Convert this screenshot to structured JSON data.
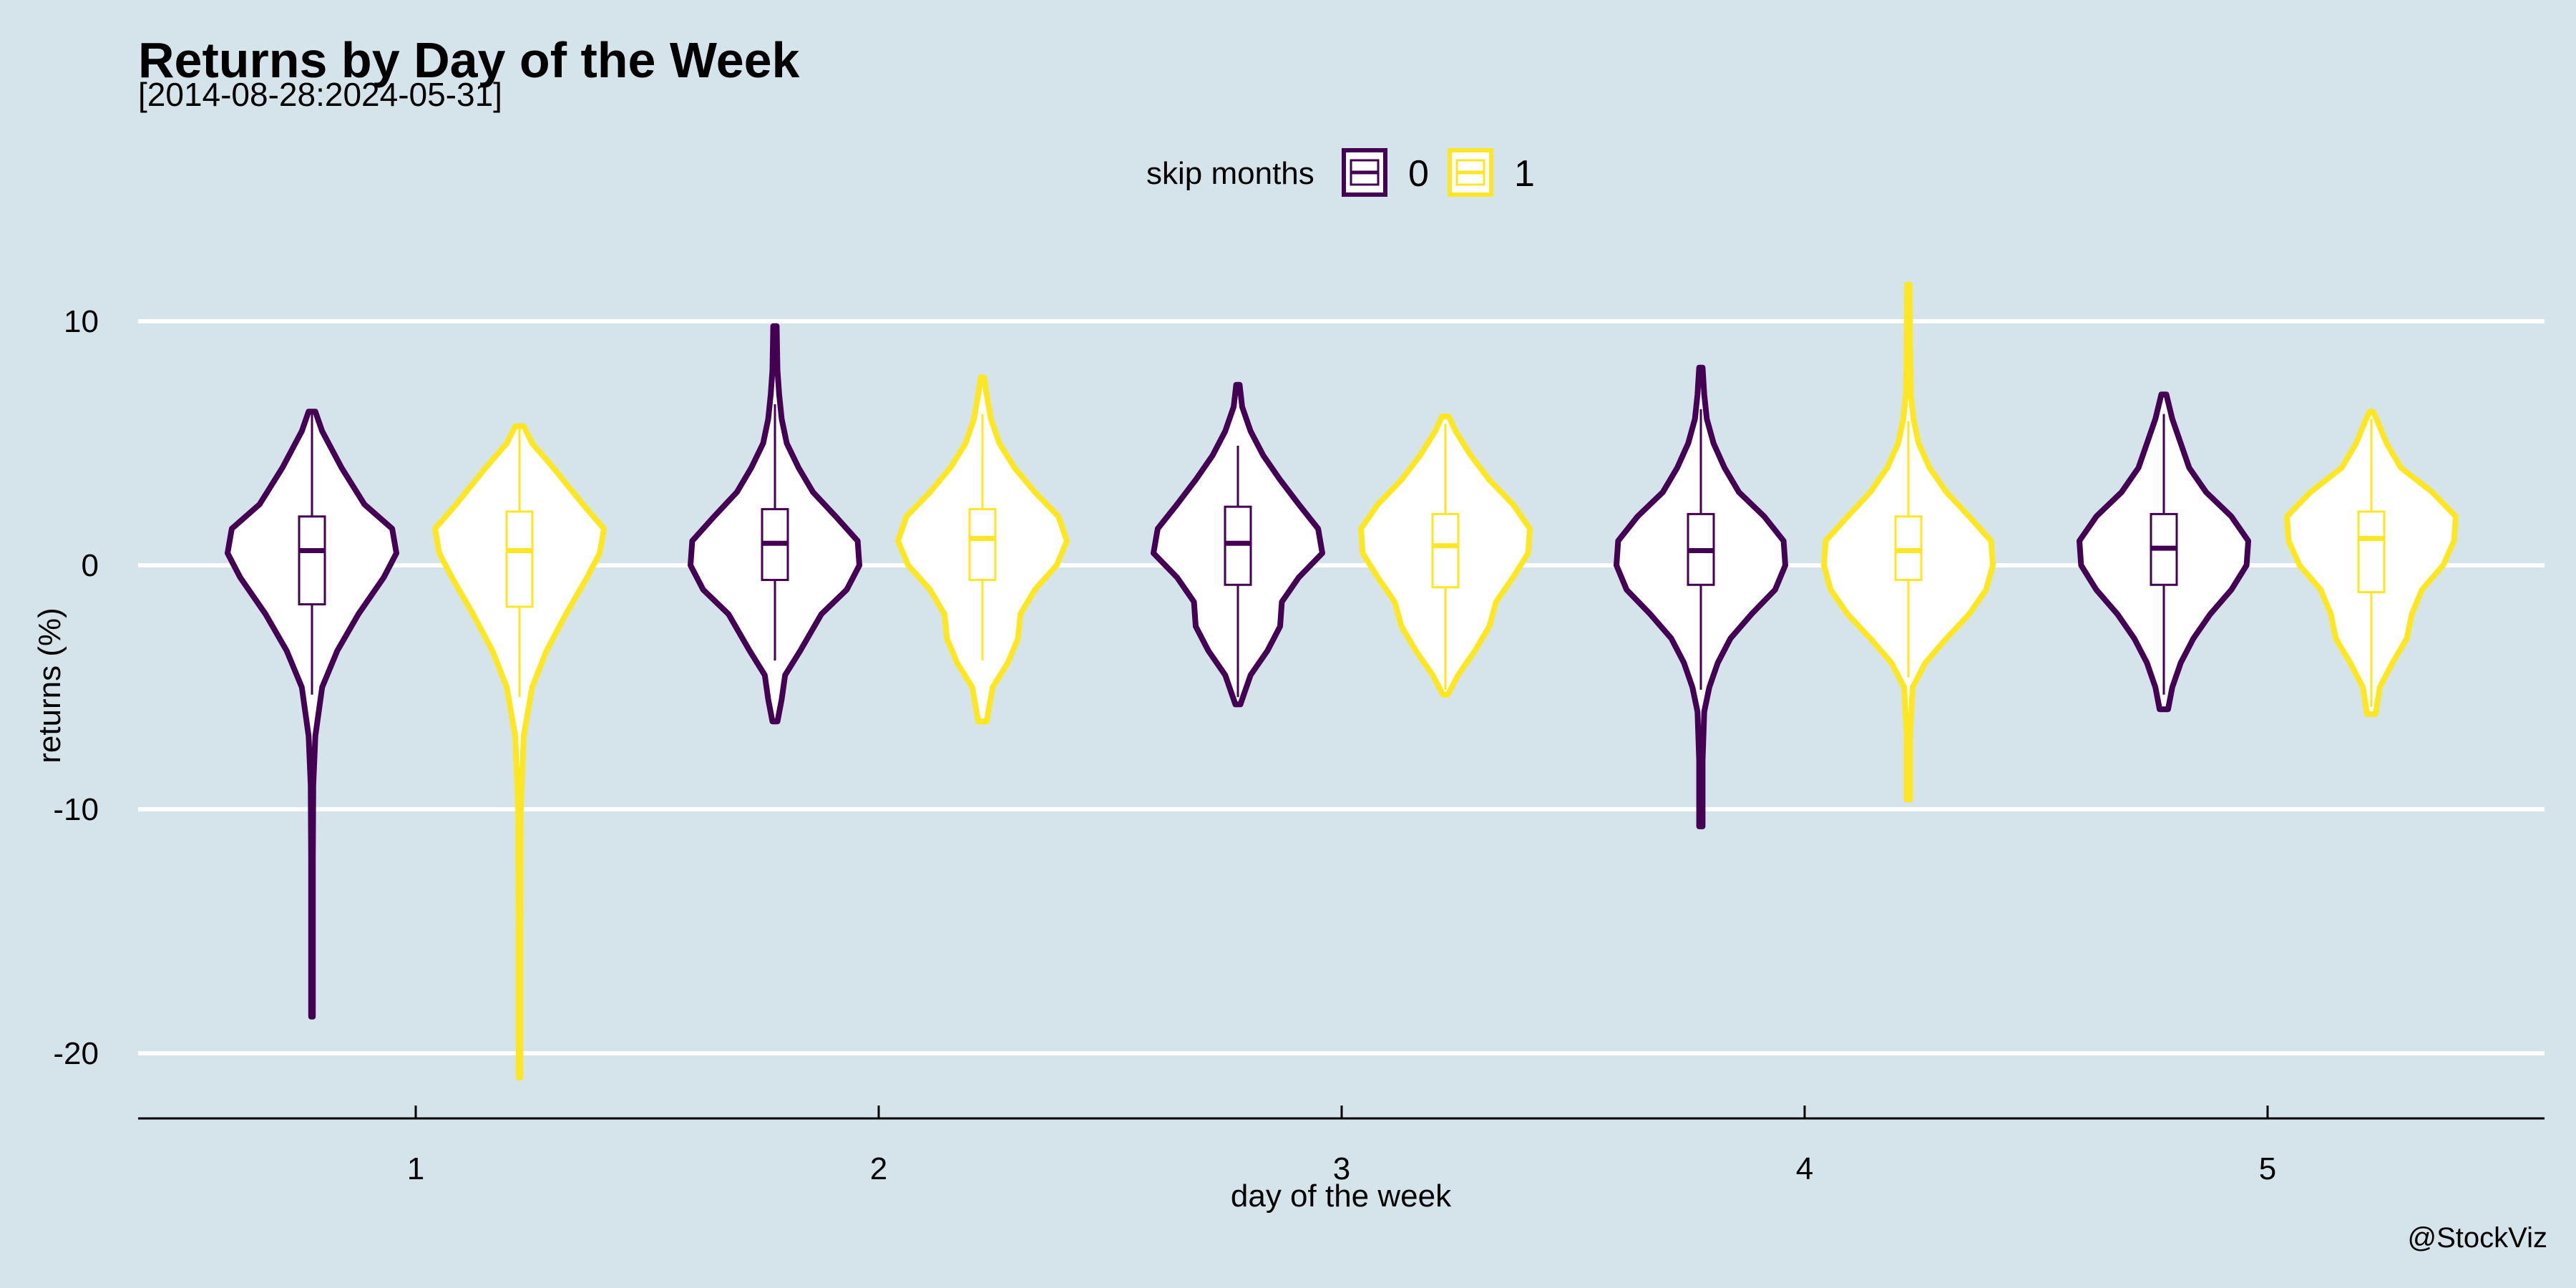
{
  "chart_data": {
    "type": "violin",
    "title": "Returns by Day of the Week",
    "subtitle": "[2014-08-28:2024-05-31]",
    "xlabel": "day of the week",
    "ylabel": "returns (%)",
    "caption": "@StockViz",
    "ylim": [
      -22.5,
      15
    ],
    "yticks": [
      10,
      0,
      -10,
      -20
    ],
    "ytick_labels": [
      "10",
      "0",
      "-10",
      "-20"
    ],
    "categories": [
      "1",
      "2",
      "3",
      "4",
      "5"
    ],
    "grid": "horizontal",
    "legend": {
      "title": "skip months",
      "position": "top",
      "entries": [
        {
          "label": "0",
          "color": "#440154"
        },
        {
          "label": "1",
          "color": "#fde725"
        }
      ]
    },
    "series": [
      {
        "name": "0",
        "color": "#440154",
        "violins": [
          {
            "category": "1",
            "min": -18.5,
            "max": 6.3,
            "q1": -1.6,
            "median": 0.6,
            "q3": 2.0,
            "whisker_low": -5.3,
            "whisker_high": 6.2,
            "profile": [
              [
                -18.5,
                0.01
              ],
              [
                -12,
                0.01
              ],
              [
                -9,
                0.015
              ],
              [
                -7,
                0.04
              ],
              [
                -5,
                0.12
              ],
              [
                -3.5,
                0.3
              ],
              [
                -2,
                0.55
              ],
              [
                -0.5,
                0.85
              ],
              [
                0.5,
                1.0
              ],
              [
                1.5,
                0.95
              ],
              [
                2.5,
                0.62
              ],
              [
                4,
                0.35
              ],
              [
                5.5,
                0.12
              ],
              [
                6.3,
                0.04
              ]
            ]
          },
          {
            "category": "2",
            "min": -6.4,
            "max": 9.8,
            "q1": -0.6,
            "median": 0.9,
            "q3": 2.3,
            "whisker_low": -3.9,
            "whisker_high": 6.6,
            "profile": [
              [
                -6.4,
                0.03
              ],
              [
                -5.5,
                0.08
              ],
              [
                -4.5,
                0.12
              ],
              [
                -3.5,
                0.3
              ],
              [
                -2,
                0.55
              ],
              [
                -1,
                0.85
              ],
              [
                0,
                1.0
              ],
              [
                1,
                0.98
              ],
              [
                2,
                0.72
              ],
              [
                3,
                0.45
              ],
              [
                4,
                0.28
              ],
              [
                5,
                0.14
              ],
              [
                6,
                0.08
              ],
              [
                7,
                0.05
              ],
              [
                8,
                0.03
              ],
              [
                9.8,
                0.02
              ]
            ]
          },
          {
            "category": "3",
            "min": -5.7,
            "max": 7.4,
            "q1": -0.8,
            "median": 0.9,
            "q3": 2.4,
            "whisker_low": -5.4,
            "whisker_high": 4.9,
            "profile": [
              [
                -5.7,
                0.03
              ],
              [
                -4.5,
                0.15
              ],
              [
                -3.5,
                0.35
              ],
              [
                -2.5,
                0.5
              ],
              [
                -1.5,
                0.52
              ],
              [
                -0.5,
                0.72
              ],
              [
                0.5,
                1.0
              ],
              [
                1.5,
                0.95
              ],
              [
                2.5,
                0.72
              ],
              [
                3.5,
                0.5
              ],
              [
                4.5,
                0.3
              ],
              [
                5.5,
                0.15
              ],
              [
                6.5,
                0.05
              ],
              [
                7.4,
                0.02
              ]
            ]
          },
          {
            "category": "4",
            "min": -10.7,
            "max": 8.1,
            "q1": -0.8,
            "median": 0.6,
            "q3": 2.1,
            "whisker_low": -5.1,
            "whisker_high": 6.4,
            "profile": [
              [
                -10.7,
                0.02
              ],
              [
                -8,
                0.02
              ],
              [
                -6,
                0.04
              ],
              [
                -5,
                0.1
              ],
              [
                -4,
                0.2
              ],
              [
                -3,
                0.35
              ],
              [
                -2,
                0.6
              ],
              [
                -1,
                0.88
              ],
              [
                0,
                1.0
              ],
              [
                1,
                0.98
              ],
              [
                2,
                0.75
              ],
              [
                3,
                0.45
              ],
              [
                4,
                0.28
              ],
              [
                5,
                0.15
              ],
              [
                6,
                0.07
              ],
              [
                7,
                0.04
              ],
              [
                8.1,
                0.02
              ]
            ]
          },
          {
            "category": "5",
            "min": -5.9,
            "max": 7.0,
            "q1": -0.8,
            "median": 0.7,
            "q3": 2.1,
            "whisker_low": -5.3,
            "whisker_high": 6.2,
            "profile": [
              [
                -5.9,
                0.05
              ],
              [
                -5,
                0.1
              ],
              [
                -4,
                0.2
              ],
              [
                -3,
                0.35
              ],
              [
                -2,
                0.55
              ],
              [
                -1,
                0.8
              ],
              [
                0,
                0.98
              ],
              [
                1,
                1.0
              ],
              [
                2,
                0.8
              ],
              [
                3,
                0.5
              ],
              [
                4,
                0.3
              ],
              [
                5,
                0.2
              ],
              [
                6,
                0.1
              ],
              [
                7,
                0.03
              ]
            ]
          }
        ]
      },
      {
        "name": "1",
        "color": "#fde725",
        "violins": [
          {
            "category": "1",
            "min": -21.0,
            "max": 5.7,
            "q1": -1.7,
            "median": 0.6,
            "q3": 2.2,
            "whisker_low": -5.4,
            "whisker_high": 5.6,
            "profile": [
              [
                -21,
                0.01
              ],
              [
                -15,
                0.01
              ],
              [
                -10,
                0.015
              ],
              [
                -7,
                0.05
              ],
              [
                -5,
                0.15
              ],
              [
                -3.5,
                0.32
              ],
              [
                -2,
                0.55
              ],
              [
                -0.5,
                0.8
              ],
              [
                0.5,
                0.95
              ],
              [
                1.5,
                1.0
              ],
              [
                2.5,
                0.75
              ],
              [
                4,
                0.4
              ],
              [
                5,
                0.15
              ],
              [
                5.7,
                0.05
              ]
            ]
          },
          {
            "category": "2",
            "min": -6.4,
            "max": 7.7,
            "q1": -0.6,
            "median": 1.1,
            "q3": 2.3,
            "whisker_low": -3.9,
            "whisker_high": 6.2,
            "profile": [
              [
                -6.4,
                0.05
              ],
              [
                -5,
                0.12
              ],
              [
                -4,
                0.3
              ],
              [
                -3,
                0.42
              ],
              [
                -2,
                0.45
              ],
              [
                -1,
                0.62
              ],
              [
                0,
                0.88
              ],
              [
                1,
                1.0
              ],
              [
                2,
                0.9
              ],
              [
                3,
                0.62
              ],
              [
                4,
                0.38
              ],
              [
                5,
                0.2
              ],
              [
                6,
                0.1
              ],
              [
                7,
                0.05
              ],
              [
                7.7,
                0.02
              ]
            ]
          },
          {
            "category": "3",
            "min": -5.3,
            "max": 6.1,
            "q1": -0.9,
            "median": 0.8,
            "q3": 2.1,
            "whisker_low": -5.1,
            "whisker_high": 5.8,
            "profile": [
              [
                -5.3,
                0.03
              ],
              [
                -4.5,
                0.15
              ],
              [
                -3.5,
                0.35
              ],
              [
                -2.5,
                0.52
              ],
              [
                -1.5,
                0.6
              ],
              [
                -0.5,
                0.8
              ],
              [
                0.5,
                0.98
              ],
              [
                1.5,
                1.0
              ],
              [
                2.5,
                0.8
              ],
              [
                3.5,
                0.52
              ],
              [
                4.5,
                0.3
              ],
              [
                5.5,
                0.12
              ],
              [
                6.1,
                0.04
              ]
            ]
          },
          {
            "category": "4",
            "min": -9.6,
            "max": 11.5,
            "q1": -0.6,
            "median": 0.6,
            "q3": 2.0,
            "whisker_low": -4.6,
            "whisker_high": 5.9,
            "profile": [
              [
                -9.6,
                0.02
              ],
              [
                -7,
                0.02
              ],
              [
                -5,
                0.05
              ],
              [
                -4,
                0.2
              ],
              [
                -3,
                0.45
              ],
              [
                -2,
                0.72
              ],
              [
                -1,
                0.92
              ],
              [
                0,
                1.0
              ],
              [
                1,
                0.98
              ],
              [
                2,
                0.72
              ],
              [
                3,
                0.45
              ],
              [
                4,
                0.25
              ],
              [
                5,
                0.12
              ],
              [
                6,
                0.06
              ],
              [
                7,
                0.03
              ],
              [
                9,
                0.02
              ],
              [
                11.5,
                0.015
              ]
            ]
          },
          {
            "category": "5",
            "min": -6.1,
            "max": 6.3,
            "q1": -1.1,
            "median": 1.1,
            "q3": 2.2,
            "whisker_low": -5.8,
            "whisker_high": 6.0,
            "profile": [
              [
                -6.1,
                0.05
              ],
              [
                -5,
                0.1
              ],
              [
                -4,
                0.25
              ],
              [
                -3,
                0.42
              ],
              [
                -2,
                0.48
              ],
              [
                -1,
                0.6
              ],
              [
                0,
                0.85
              ],
              [
                1,
                0.98
              ],
              [
                2,
                1.0
              ],
              [
                3,
                0.72
              ],
              [
                4,
                0.35
              ],
              [
                5,
                0.18
              ],
              [
                6,
                0.06
              ],
              [
                6.3,
                0.02
              ]
            ]
          }
        ]
      }
    ]
  }
}
